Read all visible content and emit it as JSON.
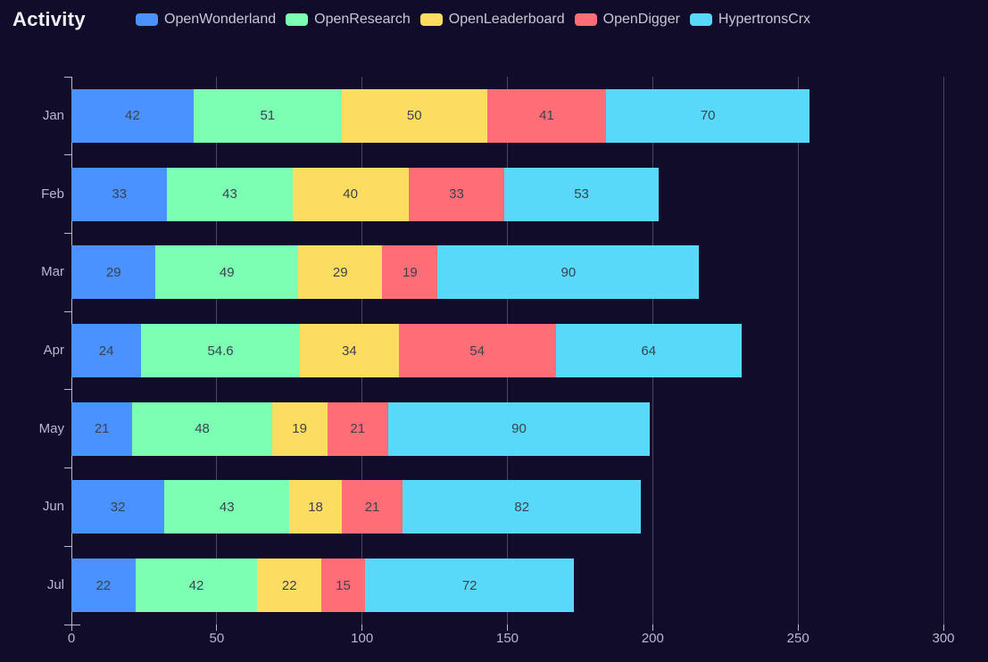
{
  "title": "Activity",
  "legend": {
    "items": [
      "OpenWonderland",
      "OpenResearch",
      "OpenLeaderboard",
      "OpenDigger",
      "HypertronsCrx"
    ]
  },
  "chart_data": {
    "type": "bar",
    "orientation": "horizontal",
    "stacked": true,
    "title": "Activity",
    "categories": [
      "Jan",
      "Feb",
      "Mar",
      "Apr",
      "May",
      "Jun",
      "Jul"
    ],
    "series": [
      {
        "name": "OpenWonderland",
        "color": "#4992ff",
        "values": [
          42,
          33,
          29,
          24,
          21,
          32,
          22
        ]
      },
      {
        "name": "OpenResearch",
        "color": "#7cffb2",
        "values": [
          51,
          43,
          49,
          54.6,
          48,
          43,
          42
        ]
      },
      {
        "name": "OpenLeaderboard",
        "color": "#fddd60",
        "values": [
          50,
          40,
          29,
          34,
          19,
          18,
          22
        ]
      },
      {
        "name": "OpenDigger",
        "color": "#ff6e76",
        "values": [
          41,
          33,
          19,
          54,
          21,
          21,
          15
        ]
      },
      {
        "name": "HypertronsCrx",
        "color": "#58d9f9",
        "values": [
          70,
          53,
          90,
          64,
          90,
          82,
          72
        ]
      }
    ],
    "xlabel": "",
    "ylabel": "",
    "x_ticks": [
      0,
      50,
      100,
      150,
      200,
      250,
      300
    ],
    "xlim": [
      0,
      300
    ],
    "grid": true,
    "legend_position": "top",
    "value_labels": "inside"
  },
  "style": {
    "background": "#100c2a",
    "grid_line_color": "#4a4860",
    "axis_line_color": "#b9b8ce",
    "tick_label_color": "#b9b8ce",
    "value_label_color": "#3c4150",
    "title_color": "#eef1fa",
    "legend_text_color": "#c8c7d6"
  }
}
